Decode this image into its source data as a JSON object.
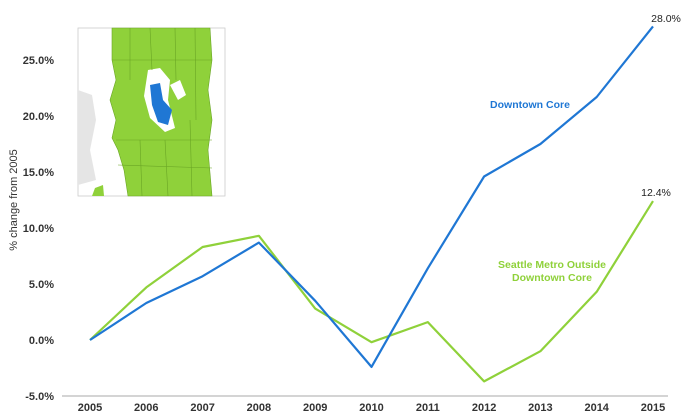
{
  "chart_data": {
    "type": "line",
    "title": "",
    "xlabel": "",
    "ylabel": "% change from 2005",
    "categories": [
      "2005",
      "2006",
      "2007",
      "2008",
      "2009",
      "2010",
      "2011",
      "2012",
      "2013",
      "2014",
      "2015"
    ],
    "ylim": [
      -5,
      28
    ],
    "yticks": [
      "-5.0%",
      "0.0%",
      "5.0%",
      "10.0%",
      "15.0%",
      "20.0%",
      "25.0%"
    ],
    "ytick_values": [
      -5,
      0,
      5,
      10,
      15,
      20,
      25
    ],
    "grid": false,
    "series": [
      {
        "name": "Downtown Core",
        "color": "#1f77d4",
        "values": [
          0.0,
          3.3,
          5.7,
          8.7,
          3.5,
          -2.4,
          6.4,
          14.6,
          17.5,
          21.7,
          28.0
        ],
        "end_label": "28.0%"
      },
      {
        "name": "Seattle Metro Outside Downtown Core",
        "label_lines": [
          "Seattle Metro Outside",
          "Downtown Core"
        ],
        "color": "#8fd13a",
        "values": [
          0.0,
          4.7,
          8.3,
          9.3,
          2.8,
          -0.2,
          1.6,
          -3.7,
          -1.0,
          4.3,
          12.4
        ],
        "end_label": "12.4%"
      }
    ],
    "inset_map": {
      "description_icon": "seattle-region-map-icon",
      "colors": {
        "land": "#8fd13a",
        "highlight": "#1f77d4",
        "water": "#ffffff",
        "outside": "#e5e5e5"
      }
    }
  }
}
